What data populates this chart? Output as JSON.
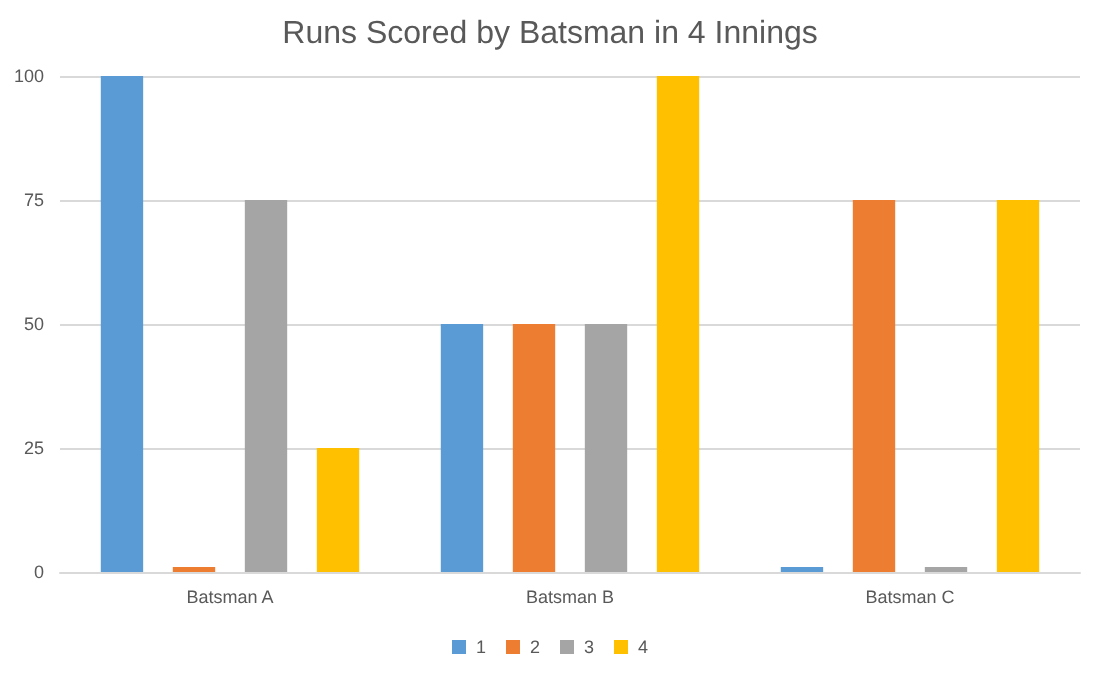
{
  "chart_data": {
    "type": "bar",
    "title": "Runs Scored by Batsman in 4 Innings",
    "categories": [
      "Batsman A",
      "Batsman B",
      "Batsman C"
    ],
    "series": [
      {
        "name": "1",
        "color": "#5b9bd5",
        "values": [
          100,
          50,
          1
        ]
      },
      {
        "name": "2",
        "color": "#ed7d31",
        "values": [
          1,
          50,
          75
        ]
      },
      {
        "name": "3",
        "color": "#a5a5a5",
        "values": [
          75,
          50,
          1
        ]
      },
      {
        "name": "4",
        "color": "#ffc000",
        "values": [
          25,
          100,
          75
        ]
      }
    ],
    "ylim": [
      0,
      100
    ],
    "yticks": [
      0,
      25,
      50,
      75,
      100
    ],
    "grid": "y",
    "legend": "bottom"
  }
}
